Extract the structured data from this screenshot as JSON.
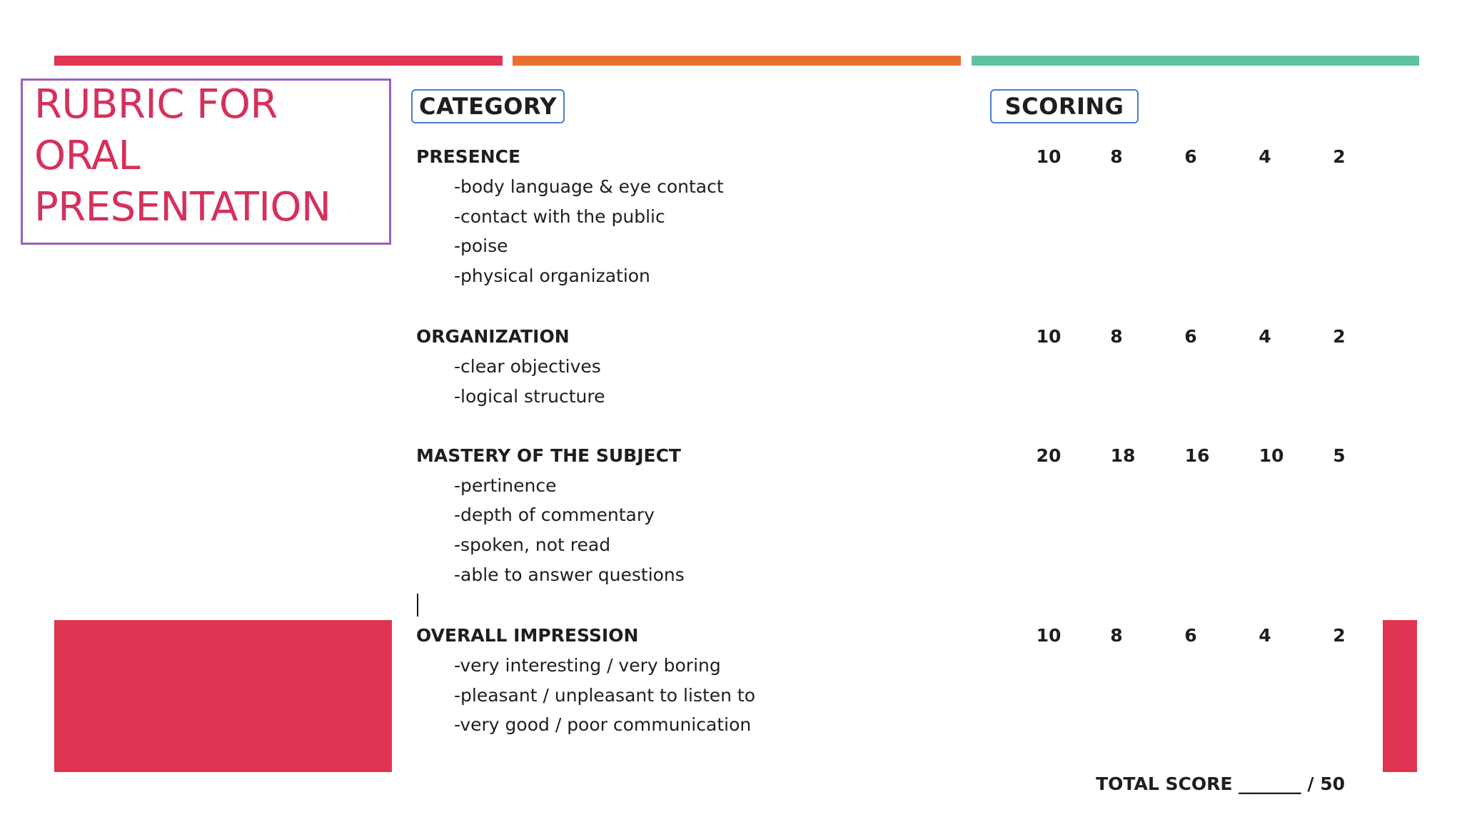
{
  "colors": {
    "bar1": "#e03552",
    "bar2": "#e8702f",
    "bar3": "#5cc4a0",
    "title_text": "#d6305a",
    "title_border": "#9b5fc0",
    "header_border": "#4a7bd4",
    "accent_block": "#e03552"
  },
  "title": {
    "lines": [
      "RUBRIC FOR",
      "ORAL",
      "PRESENTATION"
    ]
  },
  "headers": {
    "category": "CATEGORY",
    "scoring": "SCORING"
  },
  "categories": [
    {
      "name": "PRESENCE",
      "items": [
        "-body language & eye contact",
        "-contact with the public",
        "-poise",
        "-physical organization"
      ],
      "scores": [
        "10",
        "8",
        "6",
        "4",
        "2"
      ]
    },
    {
      "name": "ORGANIZATION",
      "items": [
        "-clear objectives",
        "-logical structure"
      ],
      "scores": [
        "10",
        "8",
        "6",
        "4",
        "2"
      ]
    },
    {
      "name": "MASTERY OF THE SUBJECT",
      "items": [
        "-pertinence",
        "-depth of commentary",
        "-spoken, not read",
        "-able to answer questions"
      ],
      "scores": [
        "20",
        "18",
        "16",
        "10",
        "5"
      ]
    },
    {
      "name": "OVERALL IMPRESSION",
      "items": [
        "-very interesting / very boring",
        "-pleasant / unpleasant to listen to",
        "-very good / poor communication"
      ],
      "scores": [
        "10",
        "8",
        "6",
        "4",
        "2"
      ]
    }
  ],
  "total": {
    "label": "TOTAL SCORE _______ / 50"
  }
}
